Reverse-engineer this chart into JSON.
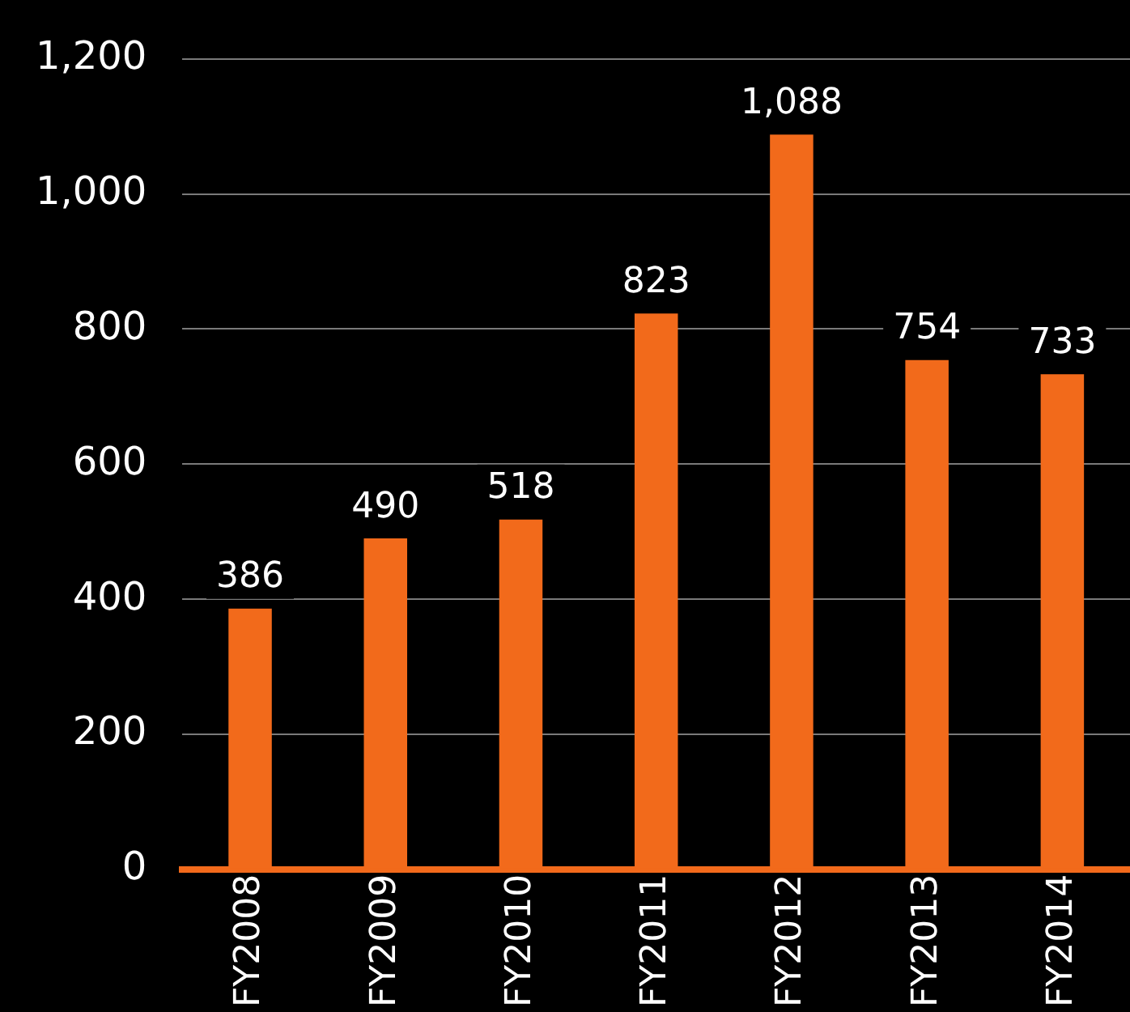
{
  "chart_data": {
    "type": "bar",
    "categories": [
      "FY2008",
      "FY2009",
      "FY2010",
      "FY2011",
      "FY2012",
      "FY2013",
      "FY2014"
    ],
    "values": [
      386,
      490,
      518,
      823,
      1088,
      754,
      733
    ],
    "value_labels": [
      "386",
      "490",
      "518",
      "823",
      "1,088",
      "754",
      "733"
    ],
    "color": "#f26a1b",
    "ylim": [
      0,
      1200
    ],
    "yticks": [
      0,
      200,
      400,
      600,
      800,
      {
        "value": 1000,
        "label": "1,000"
      },
      {
        "value": 1200,
        "label": "1,200"
      }
    ],
    "grid": "y"
  }
}
